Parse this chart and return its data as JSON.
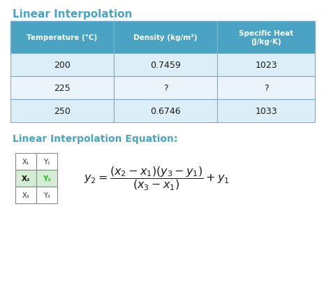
{
  "title": "Linear Interpolation",
  "title_color": "#4BA3C3",
  "equation_label": "Linear Interpolation Equation:",
  "equation_label_color": "#4BA3C3",
  "table_header": [
    "Temperature (°C)",
    "Density (kg/m³)",
    "Specific Heat\n(J/kg·K)"
  ],
  "table_header_bg": "#4BA3C3",
  "table_header_text": "#FFFFFF",
  "table_rows": [
    [
      "200",
      "0.7459",
      "1023"
    ],
    [
      "225",
      "?",
      "?"
    ],
    [
      "250",
      "0.6746",
      "1033"
    ]
  ],
  "table_row_bg_even": "#DCEef7",
  "table_row_bg_odd": "#EBF4FB",
  "table_border_color": "#7AACCC",
  "small_table_data": [
    [
      "X₁",
      "Y₁"
    ],
    [
      "X₂",
      "Y₂"
    ],
    [
      "X₃",
      "Y₃"
    ]
  ],
  "small_table_highlight_row": 1,
  "small_table_x2_color": "#111111",
  "small_table_y2_color": "#22BB22",
  "background_color": "#FFFFFF"
}
